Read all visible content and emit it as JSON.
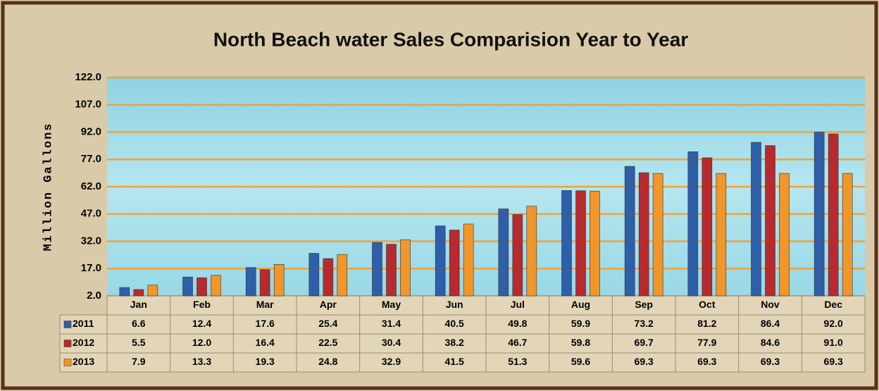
{
  "chart_data": {
    "type": "bar",
    "title": "North Beach water Sales Comparision Year to Year",
    "y_label": "Million Gallons",
    "categories": [
      "Jan",
      "Feb",
      "Mar",
      "Apr",
      "May",
      "Jun",
      "Jul",
      "Aug",
      "Sep",
      "Oct",
      "Nov",
      "Dec"
    ],
    "series": [
      {
        "name": "2011",
        "color": "#2f5fa8",
        "values": [
          6.6,
          12.4,
          17.6,
          25.4,
          31.4,
          40.5,
          49.8,
          59.9,
          73.2,
          81.2,
          86.4,
          92.0
        ],
        "value_labels": [
          "6.6",
          "12.4",
          "17.6",
          "25.4",
          "31.4",
          "40.5",
          "49.8",
          "59.9",
          "73.2",
          "81.2",
          "86.4",
          "92.0"
        ]
      },
      {
        "name": "2012",
        "color": "#b82a2e",
        "values": [
          5.5,
          12.0,
          16.4,
          22.5,
          30.4,
          38.2,
          46.7,
          59.8,
          69.7,
          77.9,
          84.6,
          91.0
        ],
        "value_labels": [
          "5.5",
          "12.0",
          "16.4",
          "22.5",
          "30.4",
          "38.2",
          "46.7",
          "59.8",
          "69.7",
          "77.9",
          "84.6",
          "91.0"
        ]
      },
      {
        "name": "2013",
        "color": "#f0962a",
        "values": [
          7.9,
          13.3,
          19.3,
          24.8,
          32.9,
          41.5,
          51.3,
          59.6,
          69.3,
          69.3,
          69.3,
          69.3
        ],
        "value_labels": [
          "7.9",
          "13.3",
          "19.3",
          "24.8",
          "32.9",
          "41.5",
          "51.3",
          "59.6",
          "69.3",
          "69.3",
          "69.3",
          "69.3"
        ]
      }
    ],
    "ylim": [
      2,
      122
    ],
    "yticks": [
      {
        "value": 2,
        "label": "2.0"
      },
      {
        "value": 17,
        "label": "17.0"
      },
      {
        "value": 32,
        "label": "32.0"
      },
      {
        "value": 47,
        "label": "47.0"
      },
      {
        "value": 62,
        "label": "62.0"
      },
      {
        "value": 77,
        "label": "77.0"
      },
      {
        "value": 92,
        "label": "92.0"
      },
      {
        "value": 107,
        "label": "107.0"
      },
      {
        "value": 122,
        "label": "122.0"
      }
    ],
    "grid": true,
    "grid_color": "#f0a23c"
  }
}
